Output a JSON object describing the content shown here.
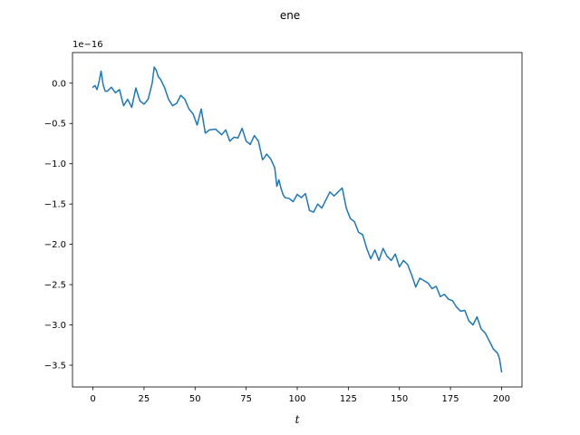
{
  "chart_data": {
    "type": "line",
    "title": "ene",
    "xlabel": "t",
    "ylabel": "",
    "y_offset_label": "1e−16",
    "x_ticks": [
      0,
      25,
      50,
      75,
      100,
      125,
      150,
      175,
      200
    ],
    "y_ticks": [
      0.0,
      -0.5,
      -1.0,
      -1.5,
      -2.0,
      -2.5,
      -3.0,
      -3.5
    ],
    "y_tick_labels": [
      "0.0",
      "−0.5",
      "−1.0",
      "−1.5",
      "−2.0",
      "−2.5",
      "−3.0",
      "−3.5"
    ],
    "xlim": [
      -10,
      210
    ],
    "ylim": [
      -3.77,
      0.38
    ],
    "grid": false,
    "line_color": "#1f77b4",
    "series": [
      {
        "x": [
          0,
          1,
          2,
          3,
          4,
          5,
          6,
          7,
          9,
          11,
          13,
          15,
          17,
          19,
          21,
          23,
          25,
          27,
          29,
          30,
          31,
          32,
          33,
          35,
          37,
          39,
          41,
          43,
          45,
          47,
          49,
          51,
          53,
          55,
          57,
          60,
          63,
          65,
          67,
          69,
          71,
          73,
          75,
          77,
          79,
          81,
          83,
          84,
          85,
          87,
          89,
          90,
          91,
          92,
          93,
          94,
          96,
          98,
          100,
          102,
          104,
          106,
          108,
          110,
          112,
          114,
          116,
          118,
          120,
          122,
          124,
          126,
          128,
          130,
          132,
          134,
          136,
          138,
          140,
          142,
          144,
          146,
          148,
          150,
          152,
          154,
          156,
          158,
          160,
          162,
          164,
          166,
          168,
          170,
          172,
          174,
          176,
          178,
          180,
          182,
          184,
          186,
          188,
          190,
          192,
          194,
          196,
          198,
          199,
          200
        ],
        "values": [
          -0.05,
          -0.03,
          -0.08,
          0.02,
          0.15,
          -0.02,
          -0.1,
          -0.1,
          -0.05,
          -0.12,
          -0.08,
          -0.28,
          -0.2,
          -0.3,
          -0.06,
          -0.22,
          -0.26,
          -0.2,
          0.0,
          0.2,
          0.16,
          0.08,
          0.05,
          -0.05,
          -0.2,
          -0.28,
          -0.25,
          -0.15,
          -0.2,
          -0.32,
          -0.38,
          -0.52,
          -0.32,
          -0.62,
          -0.58,
          -0.57,
          -0.64,
          -0.58,
          -0.72,
          -0.67,
          -0.68,
          -0.56,
          -0.72,
          -0.76,
          -0.65,
          -0.72,
          -0.95,
          -0.92,
          -0.88,
          -0.94,
          -1.05,
          -1.28,
          -1.2,
          -1.3,
          -1.38,
          -1.42,
          -1.43,
          -1.47,
          -1.38,
          -1.42,
          -1.37,
          -1.58,
          -1.6,
          -1.5,
          -1.55,
          -1.45,
          -1.35,
          -1.4,
          -1.35,
          -1.3,
          -1.55,
          -1.68,
          -1.72,
          -1.85,
          -1.88,
          -2.05,
          -2.18,
          -2.07,
          -2.2,
          -2.05,
          -2.15,
          -2.2,
          -2.12,
          -2.28,
          -2.2,
          -2.25,
          -2.38,
          -2.53,
          -2.42,
          -2.45,
          -2.48,
          -2.55,
          -2.52,
          -2.65,
          -2.62,
          -2.68,
          -2.7,
          -2.78,
          -2.83,
          -2.82,
          -2.95,
          -3.0,
          -2.9,
          -3.05,
          -3.1,
          -3.2,
          -3.3,
          -3.35,
          -3.42,
          -3.58
        ]
      }
    ]
  }
}
